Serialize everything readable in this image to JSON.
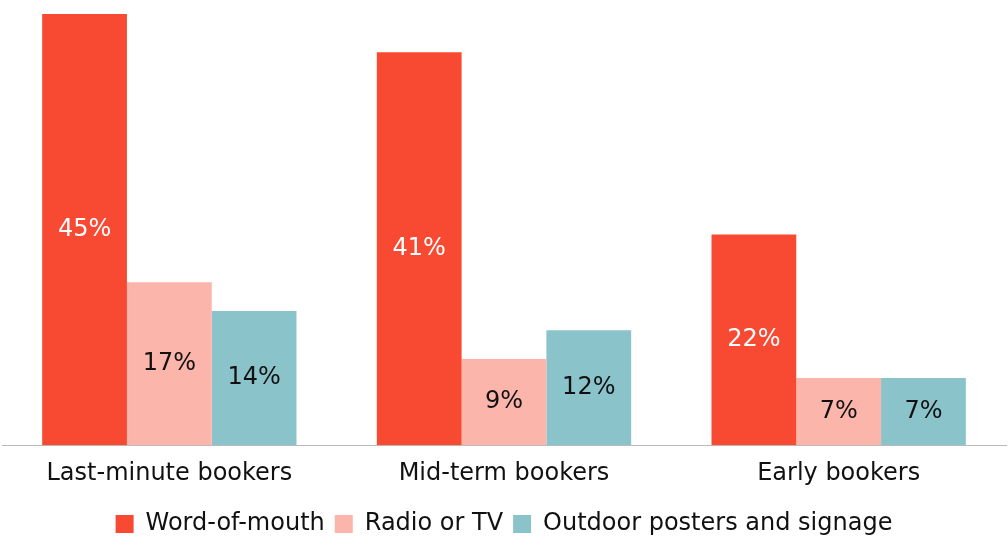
{
  "chart_data": {
    "type": "bar",
    "categories": [
      "Last-minute bookers",
      "Mid-term bookers",
      "Early bookers"
    ],
    "series": [
      {
        "name": "Word-of-mouth",
        "color": "#f84a32",
        "values": [
          45,
          41,
          22
        ],
        "value_labels": [
          "45%",
          "41%",
          "22%"
        ]
      },
      {
        "name": "Radio or TV",
        "color": "#fbb5ab",
        "values": [
          17,
          9,
          7
        ],
        "value_labels": [
          "17%",
          "9%",
          "7%"
        ]
      },
      {
        "name": "Outdoor posters and signage",
        "color": "#8bc3cb",
        "values": [
          14,
          12,
          7
        ],
        "value_labels": [
          "14%",
          "12%",
          "7%"
        ]
      }
    ],
    "grid": false,
    "legend": "bottom"
  }
}
